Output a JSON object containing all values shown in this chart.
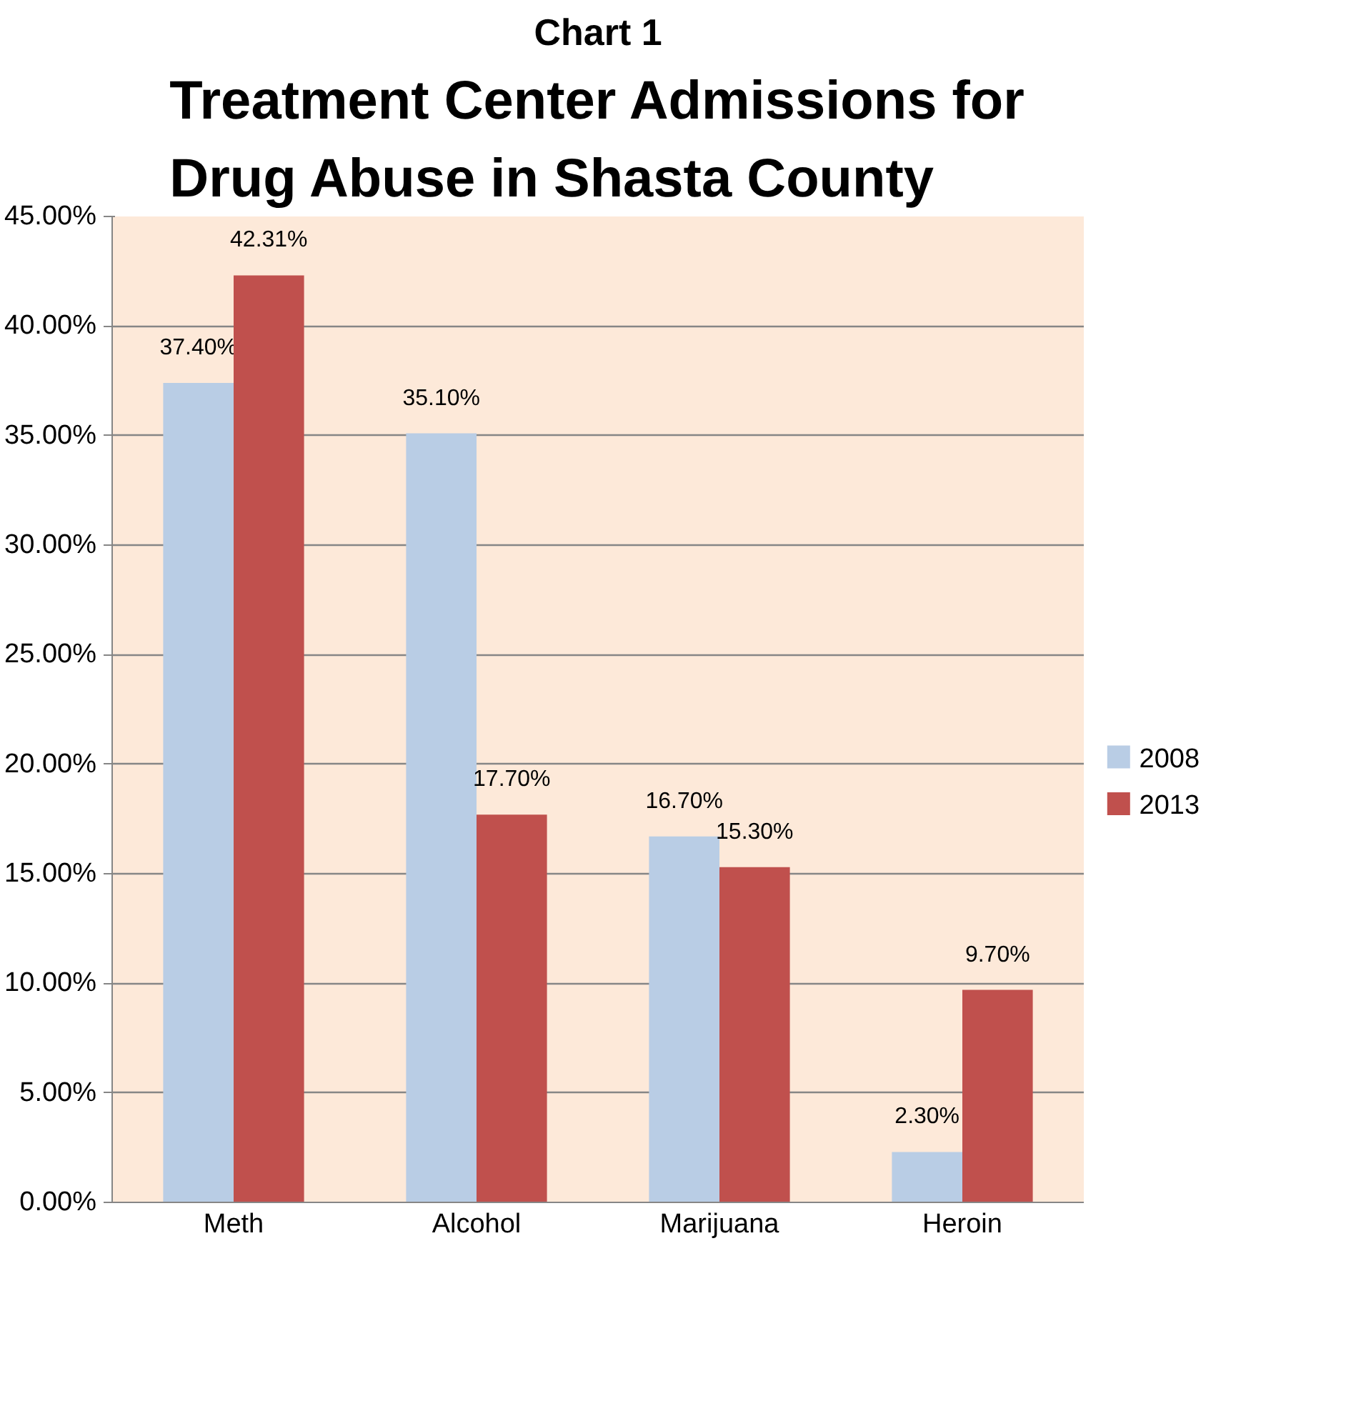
{
  "chart_data": {
    "type": "bar",
    "title": "Chart 1",
    "subtitle": "Treatment Center Admissions for Drug Abuse in Shasta County",
    "categories": [
      "Meth",
      "Alcohol",
      "Marijuana",
      "Heroin"
    ],
    "series": [
      {
        "name": "2008",
        "color": "#b9cde5",
        "values": [
          37.4,
          35.1,
          16.7,
          2.3
        ],
        "value_labels": [
          "37.40%",
          "35.10%",
          "16.70%",
          "2.30%"
        ]
      },
      {
        "name": "2013",
        "color": "#c0504d",
        "values": [
          42.31,
          17.7,
          15.3,
          9.7
        ],
        "value_labels": [
          "42.31%",
          "17.70%",
          "15.30%",
          "9.70%"
        ]
      }
    ],
    "ylim": [
      0,
      45
    ],
    "yticks": [
      {
        "value": 0,
        "label": "0.00%"
      },
      {
        "value": 5,
        "label": "5.00%"
      },
      {
        "value": 10,
        "label": "10.00%"
      },
      {
        "value": 15,
        "label": "15.00%"
      },
      {
        "value": 20,
        "label": "20.00%"
      },
      {
        "value": 25,
        "label": "25.00%"
      },
      {
        "value": 30,
        "label": "30.00%"
      },
      {
        "value": 35,
        "label": "35.00%"
      },
      {
        "value": 40,
        "label": "40.00%"
      },
      {
        "value": 45,
        "label": "45.00%"
      }
    ],
    "grid": "y",
    "legend": "right"
  }
}
